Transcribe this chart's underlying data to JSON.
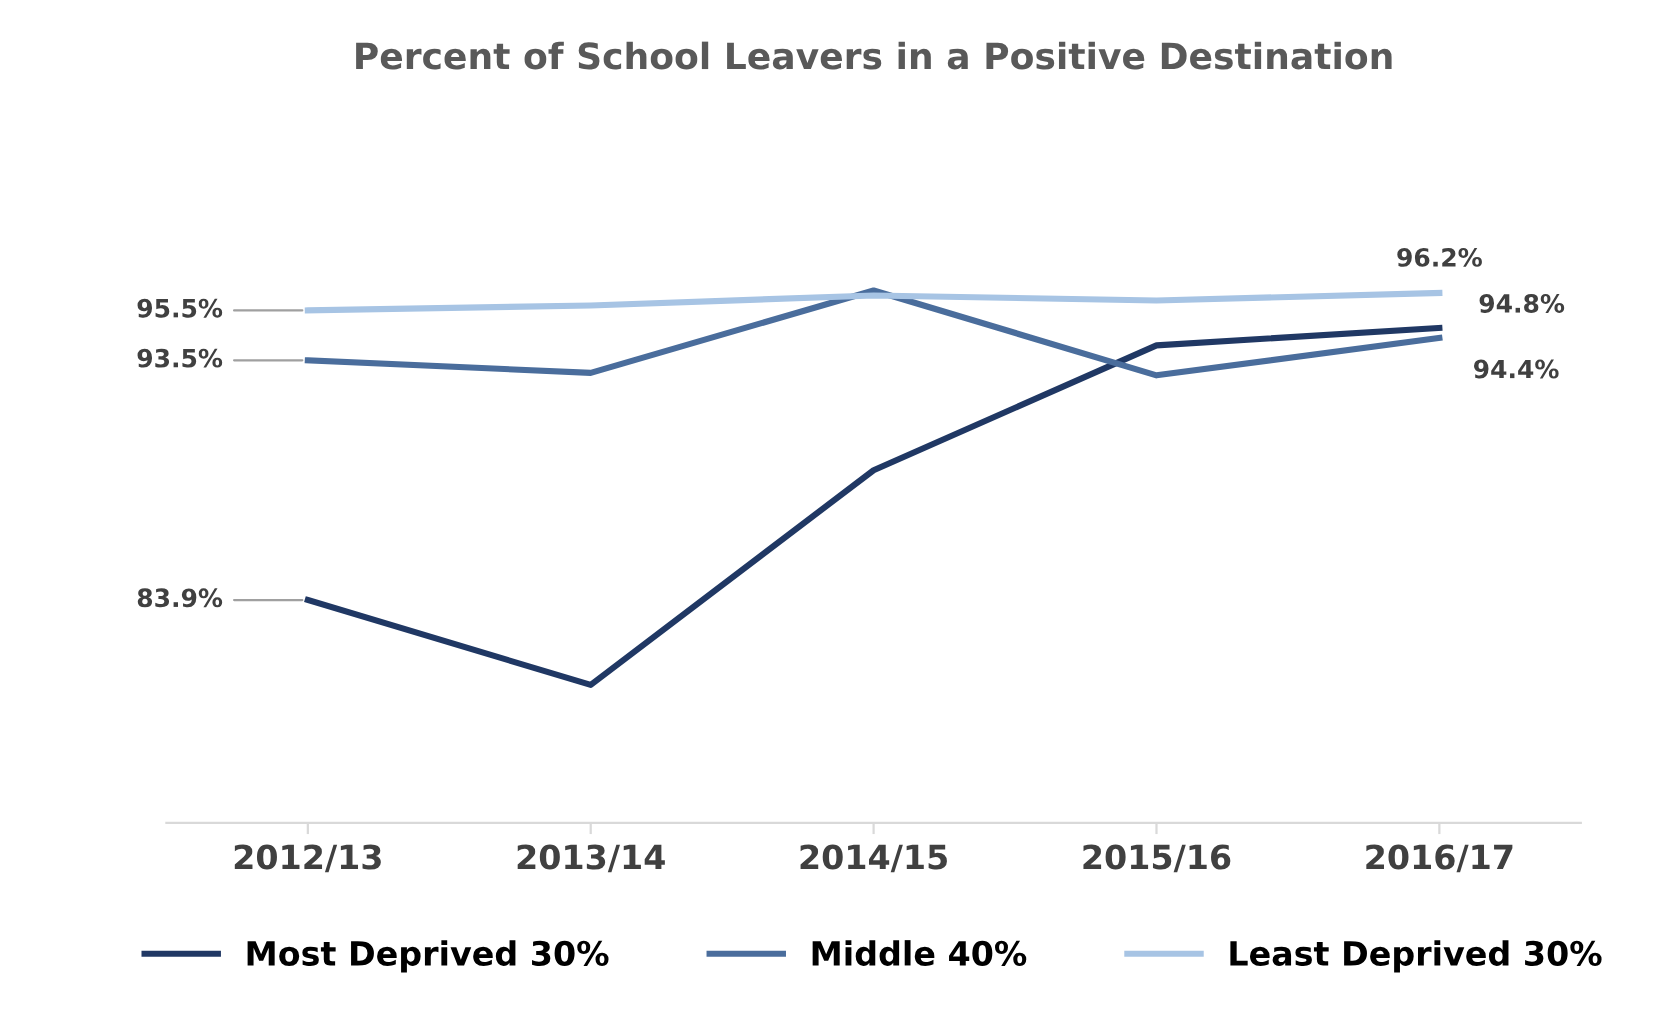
{
  "chart_data": {
    "type": "line",
    "title": "Percent of School Leavers in a Positive Destination",
    "categories": [
      "2012/13",
      "2013/14",
      "2014/15",
      "2015/16",
      "2016/17"
    ],
    "series": [
      {
        "name": "Most Deprived 30%",
        "color": "#203864",
        "values": [
          83.9,
          80.5,
          89.1,
          94.1,
          94.8
        ],
        "value_labels": [
          "83.9%",
          null,
          null,
          null,
          "94.8%"
        ]
      },
      {
        "name": "Middle 40%",
        "color": "#4a6d9c",
        "values": [
          93.5,
          93.0,
          96.3,
          92.9,
          94.4
        ],
        "value_labels": [
          "93.5%",
          null,
          null,
          null,
          "94.4%"
        ]
      },
      {
        "name": "Least Deprived 30%",
        "color": "#a7c4e4",
        "values": [
          95.5,
          95.7,
          96.1,
          95.9,
          96.2
        ],
        "value_labels": [
          "95.5%",
          null,
          null,
          null,
          "96.2%"
        ]
      }
    ],
    "tick_labels": "x",
    "grid": false,
    "legend": "bottom",
    "marker": "none",
    "line_style": "solid"
  }
}
